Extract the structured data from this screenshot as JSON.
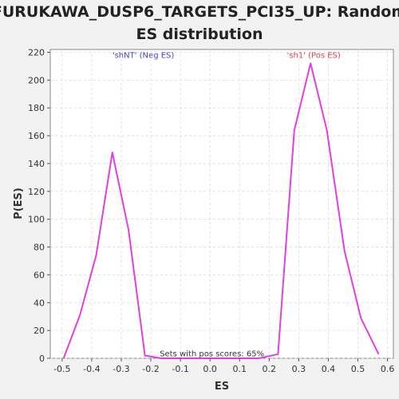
{
  "chart_data": {
    "type": "line",
    "title_lines": [
      "FURUKAWA_DUSP6_TARGETS_PCI35_UP: Random",
      "ES distribution"
    ],
    "xlabel": "ES",
    "ylabel": "P(ES)",
    "xlim": [
      -0.54,
      0.62
    ],
    "ylim": [
      0,
      222
    ],
    "xticks": [
      -0.5,
      -0.4,
      -0.3,
      -0.2,
      -0.1,
      0.0,
      0.1,
      0.2,
      0.3,
      0.4,
      0.5,
      0.6
    ],
    "xtick_labels": [
      "-0.5",
      "-0.4",
      "-0.3",
      "-0.2",
      "-0.1",
      "0.0",
      "0.1",
      "0.2",
      "0.3",
      "0.4",
      "0.5",
      "0.6"
    ],
    "yticks": [
      0,
      20,
      40,
      60,
      80,
      100,
      120,
      140,
      160,
      180,
      200,
      220
    ],
    "ytick_labels": [
      "0",
      "20",
      "40",
      "60",
      "80",
      "100",
      "120",
      "140",
      "160",
      "180",
      "200",
      "220"
    ],
    "grid": true,
    "series": [
      {
        "color": "#e040e0",
        "x": [
          -0.495,
          -0.44,
          -0.385,
          -0.33,
          -0.275,
          -0.22,
          -0.165,
          -0.11,
          -0.055,
          0.0,
          0.055,
          0.11,
          0.165,
          0.23,
          0.285,
          0.34,
          0.395,
          0.455,
          0.51,
          0.57
        ],
        "y": [
          0,
          31,
          74,
          148,
          92,
          2,
          0,
          0,
          0,
          0,
          0,
          0,
          0,
          3,
          164,
          212,
          164,
          77,
          29,
          3
        ]
      }
    ],
    "annotations": [
      {
        "text": "'shNT' (Neg ES)",
        "color": "#4444cc",
        "x": -0.33,
        "y": 216
      },
      {
        "text": "'sh1' (Pos ES)",
        "color": "#e04050",
        "x": 0.26,
        "y": 216
      },
      {
        "text": "Sets with pos scores: 65%",
        "color": "#333333",
        "x": -0.17,
        "y": 1.5
      }
    ]
  }
}
